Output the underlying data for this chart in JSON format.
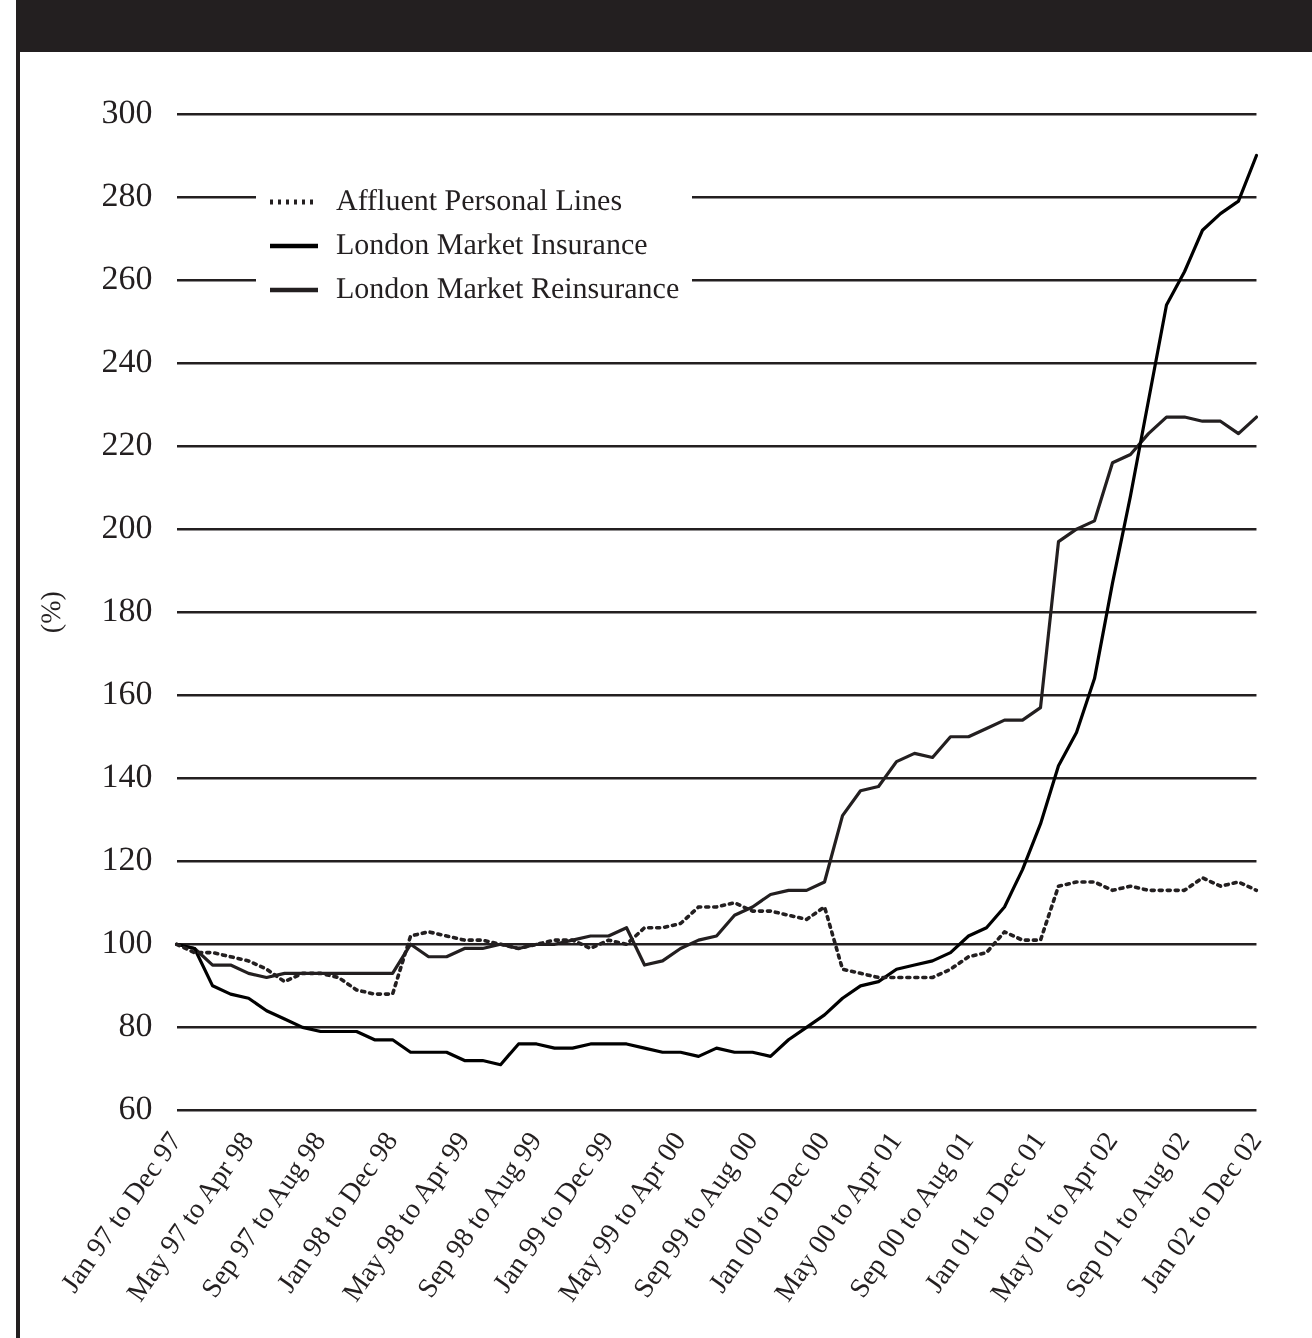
{
  "chart_data": {
    "type": "line",
    "ylabel": "(%)",
    "categories": [
      "Jan 97 to Dec 97",
      null,
      null,
      null,
      "May 97 to Apr 98",
      null,
      null,
      null,
      "Sep 97 to Aug 98",
      null,
      null,
      null,
      "Jan 98 to Dec 98",
      null,
      null,
      null,
      "May 98 to Apr 99",
      null,
      null,
      null,
      "Sep 98 to Aug 99",
      null,
      null,
      null,
      "Jan 99 to Dec 99",
      null,
      null,
      null,
      "May 99 to Apr 00",
      null,
      null,
      null,
      "Sep 99 to Aug 00",
      null,
      null,
      null,
      "Jan 00 to Dec 00",
      null,
      null,
      null,
      "May 00 to Apr 01",
      null,
      null,
      null,
      "Sep 00 to Aug 01",
      null,
      null,
      null,
      "Jan 01 to Dec 01",
      null,
      null,
      null,
      "May 01 to Apr 02",
      null,
      null,
      null,
      "Sep 01 to Aug 02",
      null,
      null,
      null,
      "Jan 02 to Dec 02"
    ],
    "series": [
      {
        "name": "Affluent Personal Lines",
        "color": "#231f20",
        "line_style": "dotted",
        "values": [
          100,
          98,
          98,
          97,
          96,
          94,
          91,
          93,
          93,
          92,
          89,
          88,
          88,
          102,
          103,
          102,
          101,
          101,
          100,
          99,
          100,
          101,
          101,
          99,
          101,
          100,
          104,
          104,
          105,
          109,
          109,
          110,
          108,
          108,
          107,
          106,
          109,
          94,
          93,
          92,
          92,
          92,
          92,
          94,
          97,
          98,
          103,
          101,
          101,
          114,
          115,
          115,
          113,
          114,
          113,
          113,
          113,
          116,
          114,
          115,
          113
        ]
      },
      {
        "name": "London Market Insurance",
        "color": "#000000",
        "line_style": "solid",
        "values": [
          100,
          99,
          90,
          88,
          87,
          84,
          82,
          80,
          79,
          79,
          79,
          77,
          77,
          74,
          74,
          74,
          72,
          72,
          71,
          76,
          76,
          75,
          75,
          76,
          76,
          76,
          75,
          74,
          74,
          73,
          75,
          74,
          74,
          73,
          77,
          80,
          83,
          87,
          90,
          91,
          94,
          95,
          96,
          98,
          102,
          104,
          109,
          118,
          129,
          143,
          151,
          164,
          187,
          208,
          231,
          254,
          262,
          272,
          276,
          279,
          290
        ]
      },
      {
        "name": "London Market Reinsurance",
        "color": "#231f20",
        "line_style": "solid",
        "values": [
          100,
          99,
          95,
          95,
          93,
          92,
          93,
          93,
          93,
          93,
          93,
          93,
          93,
          100,
          97,
          97,
          99,
          99,
          100,
          99,
          100,
          100,
          101,
          102,
          102,
          104,
          95,
          96,
          99,
          101,
          102,
          107,
          109,
          112,
          113,
          113,
          115,
          131,
          137,
          138,
          144,
          146,
          145,
          150,
          150,
          152,
          154,
          154,
          157,
          197,
          200,
          202,
          216,
          218,
          223,
          227,
          227,
          226,
          226,
          223,
          227
        ]
      }
    ],
    "ylim": [
      60,
      300
    ],
    "yticks": [
      60,
      80,
      100,
      120,
      140,
      160,
      180,
      200,
      220,
      240,
      260,
      280,
      300
    ],
    "grid": "y",
    "legend": "top left",
    "marker": "none"
  }
}
